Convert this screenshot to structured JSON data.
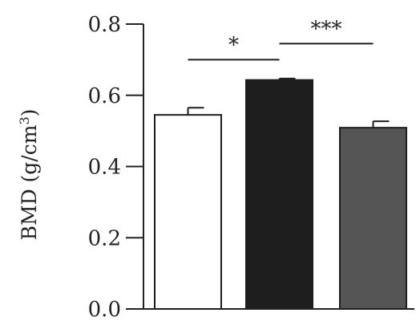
{
  "chart_data": {
    "type": "bar",
    "title": "",
    "xlabel": "",
    "ylabel": "BMD (g/cm",
    "ylabel_superscript": "3",
    "ylabel_suffix": ")",
    "ylim": [
      0,
      0.8
    ],
    "yticks": [
      "0.0",
      "0.2",
      "0.4",
      "0.6",
      "0.8"
    ],
    "categories": [
      "",
      "",
      ""
    ],
    "values": [
      0.545,
      0.643,
      0.509
    ],
    "errors": [
      0.02,
      0.004,
      0.018
    ],
    "bar_colors": [
      "#ffffff",
      "#1e1e1e",
      "#555555"
    ],
    "significance": [
      {
        "from": 0,
        "to": 1,
        "label": "*",
        "y": 0.7
      },
      {
        "from": 1,
        "to": 2,
        "label": "***",
        "y": 0.745
      }
    ],
    "grid": false
  }
}
